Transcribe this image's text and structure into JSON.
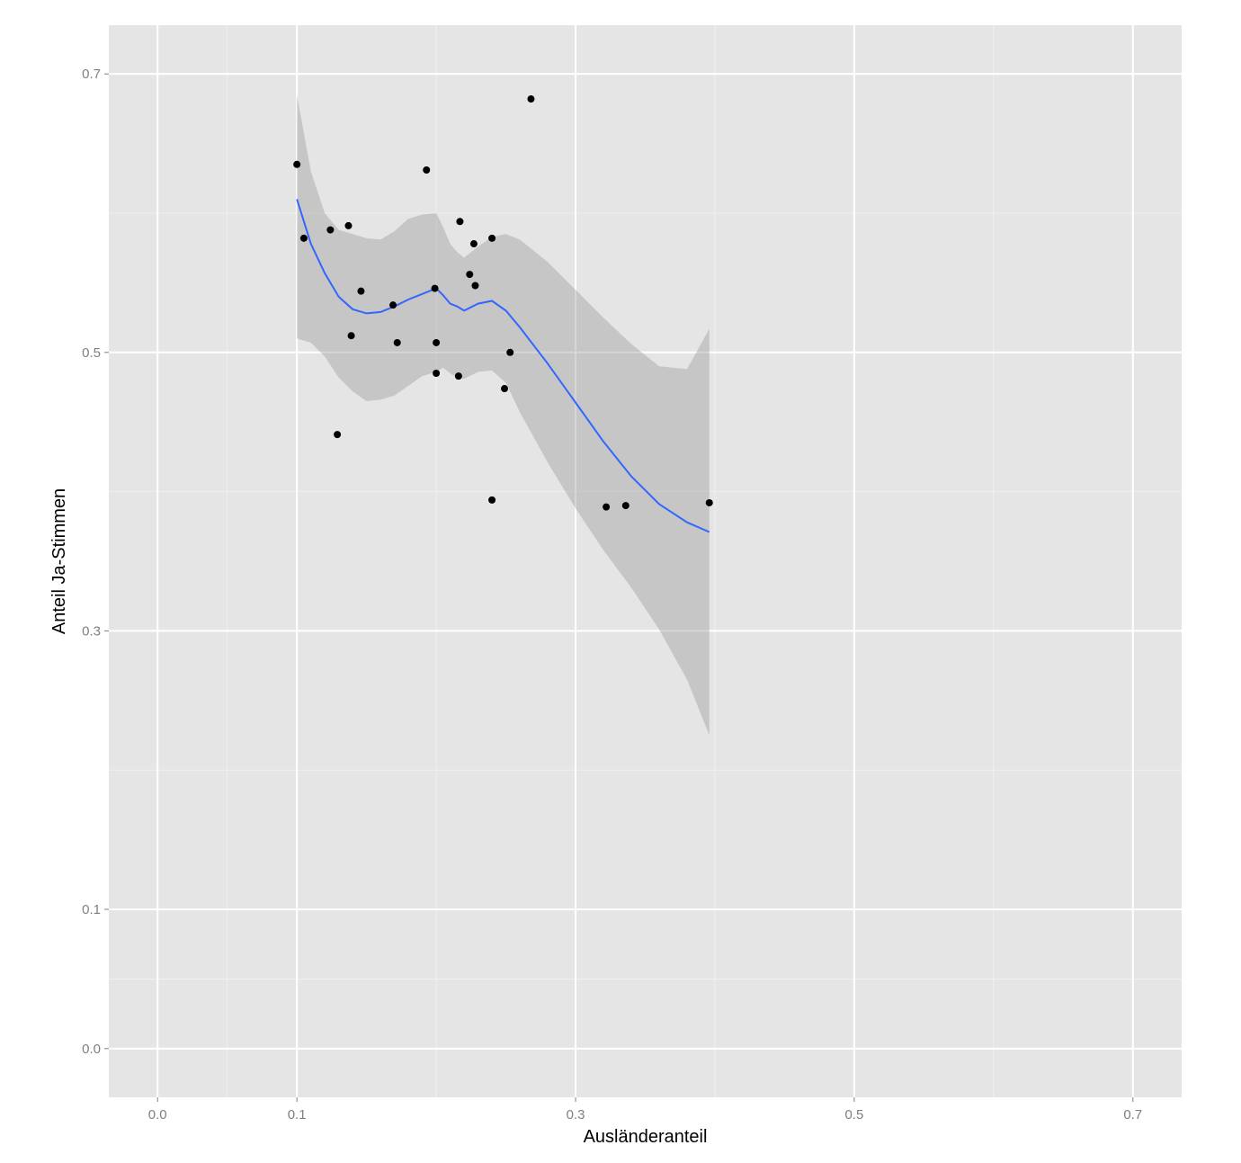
{
  "chart_data": {
    "type": "scatter",
    "xlabel": "Ausländeranteil",
    "ylabel": "Anteil Ja-Stimmen",
    "xlim": [
      -0.035,
      0.735
    ],
    "ylim": [
      -0.035,
      0.735
    ],
    "x_ticks": [
      0.0,
      0.1,
      0.3,
      0.5,
      0.7
    ],
    "x_tick_labels": [
      "0.0",
      "0.1",
      "0.3",
      "0.5",
      "0.7"
    ],
    "y_ticks": [
      0.0,
      0.1,
      0.3,
      0.5,
      0.7
    ],
    "y_tick_labels": [
      "0.0",
      "0.1",
      "0.3",
      "0.5",
      "0.7"
    ],
    "x_minor_ticks": [
      0.05,
      0.2,
      0.4,
      0.6
    ],
    "y_minor_ticks": [
      0.05,
      0.2,
      0.4,
      0.6
    ],
    "grid": true,
    "colors": {
      "panel_background": "#e5e5e5",
      "grid_major": "#ffffff",
      "grid_minor": "#f2f2f2",
      "points": "#000000",
      "smooth_line": "#3366ff",
      "confidence_band": "#999999"
    },
    "series": [
      {
        "type": "points",
        "x": [
          0.1,
          0.105,
          0.124,
          0.129,
          0.137,
          0.139,
          0.146,
          0.169,
          0.172,
          0.193,
          0.199,
          0.2,
          0.2,
          0.216,
          0.217,
          0.224,
          0.227,
          0.228,
          0.24,
          0.24,
          0.249,
          0.253,
          0.268,
          0.322,
          0.336,
          0.396
        ],
        "y": [
          0.635,
          0.582,
          0.588,
          0.441,
          0.591,
          0.512,
          0.544,
          0.534,
          0.507,
          0.631,
          0.546,
          0.507,
          0.485,
          0.483,
          0.594,
          0.556,
          0.578,
          0.548,
          0.582,
          0.394,
          0.474,
          0.5,
          0.682,
          0.389,
          0.39,
          0.392
        ]
      },
      {
        "type": "smooth",
        "x": [
          0.1,
          0.11,
          0.12,
          0.13,
          0.14,
          0.15,
          0.16,
          0.17,
          0.18,
          0.19,
          0.2,
          0.205,
          0.21,
          0.215,
          0.22,
          0.23,
          0.24,
          0.25,
          0.26,
          0.28,
          0.3,
          0.32,
          0.34,
          0.36,
          0.38,
          0.396
        ],
        "y": [
          0.61,
          0.578,
          0.557,
          0.54,
          0.531,
          0.528,
          0.529,
          0.533,
          0.538,
          0.542,
          0.546,
          0.541,
          0.535,
          0.533,
          0.53,
          0.535,
          0.537,
          0.53,
          0.518,
          0.492,
          0.464,
          0.436,
          0.411,
          0.391,
          0.378,
          0.371
        ],
        "upper": [
          0.685,
          0.63,
          0.6,
          0.588,
          0.585,
          0.582,
          0.581,
          0.587,
          0.596,
          0.599,
          0.6,
          0.59,
          0.578,
          0.572,
          0.568,
          0.576,
          0.583,
          0.585,
          0.581,
          0.565,
          0.545,
          0.525,
          0.506,
          0.49,
          0.488,
          0.517
        ],
        "lower": [
          0.51,
          0.507,
          0.497,
          0.482,
          0.472,
          0.465,
          0.466,
          0.469,
          0.476,
          0.483,
          0.486,
          0.489,
          0.485,
          0.482,
          0.481,
          0.486,
          0.487,
          0.478,
          0.457,
          0.421,
          0.388,
          0.358,
          0.331,
          0.301,
          0.265,
          0.225
        ]
      }
    ]
  }
}
